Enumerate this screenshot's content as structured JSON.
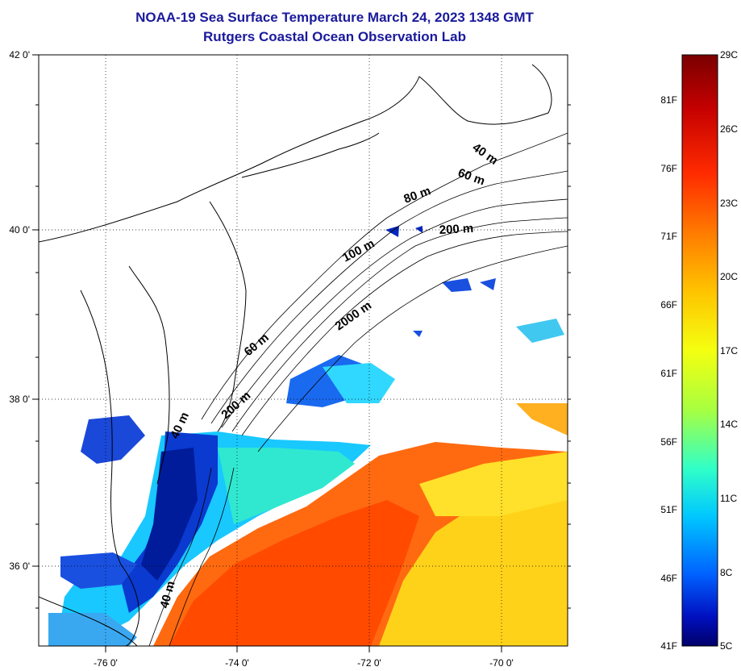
{
  "title": "NOAA-19 Sea Surface Temperature March 24, 2023 1348 GMT",
  "subtitle": "Rutgers Coastal Ocean Observation Lab",
  "lat_ticks": [
    "42 0'",
    "40 0'",
    "38 0'",
    "36 0'"
  ],
  "lon_ticks": [
    "-76 0'",
    "-74 0'",
    "-72 0'",
    "-70 0'"
  ],
  "contour_labels": [
    "40 m",
    "60 m",
    "80 m",
    "200 m",
    "100 m",
    "2000 m",
    "60 m",
    "200 m",
    "40 m",
    "40 m"
  ],
  "colorbar": {
    "celsius": [
      "29C",
      "26C",
      "23C",
      "20C",
      "17C",
      "14C",
      "11C",
      "8C",
      "5C"
    ],
    "fahrenheit": [
      "81F",
      "76F",
      "71F",
      "66F",
      "61F",
      "56F",
      "51F",
      "46F",
      "41F"
    ],
    "colors": [
      "#7a0000",
      "#c40000",
      "#ff2a00",
      "#ff7a00",
      "#ffc400",
      "#ffff00",
      "#a8ff40",
      "#30ffc8",
      "#00c8ff",
      "#0060ff",
      "#0010c0",
      "#00006a"
    ]
  }
}
